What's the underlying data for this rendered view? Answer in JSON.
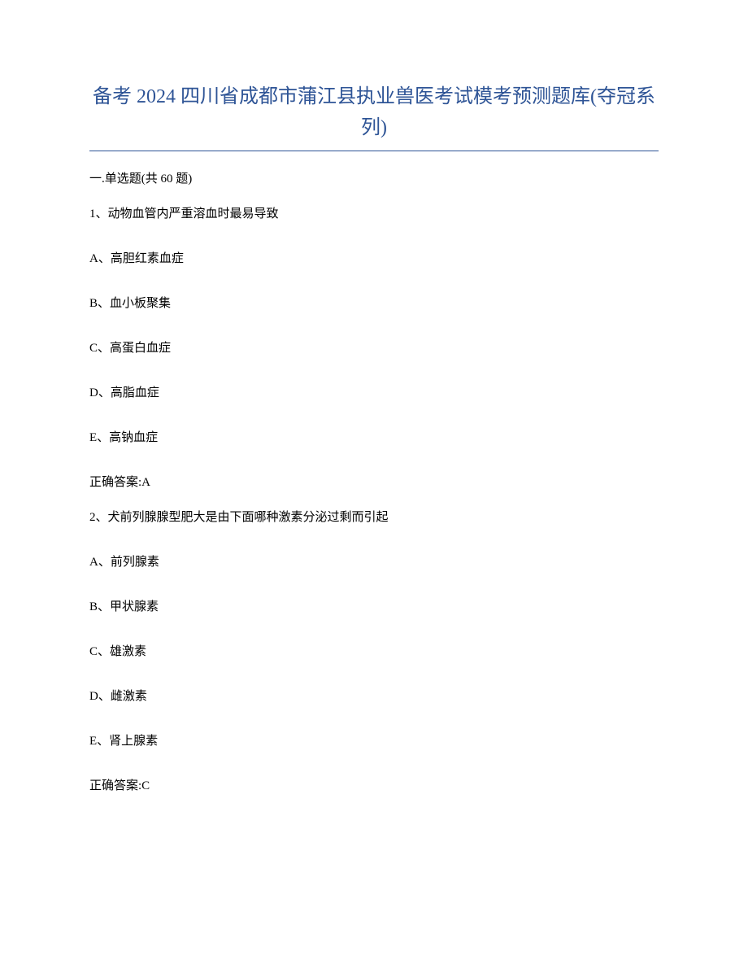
{
  "title": "备考 2024 四川省成都市蒲江县执业兽医考试模考预测题库(夺冠系列)",
  "section_header": "一.单选题(共 60 题)",
  "questions": [
    {
      "number": "1、",
      "text": "动物血管内严重溶血时最易导致",
      "options": [
        "A、高胆红素血症",
        "B、血小板聚集",
        "C、高蛋白血症",
        "D、高脂血症",
        "E、高钠血症"
      ],
      "answer": "正确答案:A"
    },
    {
      "number": "2、",
      "text": "犬前列腺腺型肥大是由下面哪种激素分泌过剩而引起",
      "options": [
        "A、前列腺素",
        "B、甲状腺素",
        "C、雄激素",
        "D、雌激素",
        "E、肾上腺素"
      ],
      "answer": "正确答案:C"
    }
  ],
  "colors": {
    "title_color": "#2e5496",
    "text_color": "#000000",
    "background": "#ffffff",
    "divider": "#2e5496"
  },
  "typography": {
    "title_fontsize": 24,
    "body_fontsize": 15,
    "font_family": "SimSun"
  }
}
